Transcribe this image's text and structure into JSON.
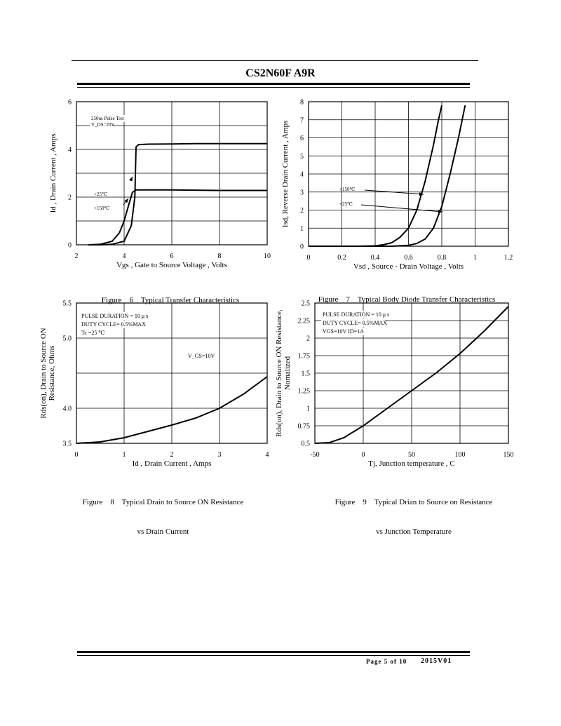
{
  "header": {
    "part_number": "CS2N60F A9R"
  },
  "footer": {
    "page": "Page 5 of 10",
    "revision": "2015V01"
  },
  "figures": [
    {
      "caption_line1": "Figure    6    Typical Transfer Characteristics",
      "caption_line2": ""
    },
    {
      "caption_line1": "Figure    7    Typical Body Diode Transfer Characteristics",
      "caption_line2": ""
    },
    {
      "caption_line1": "Figure    8    Typical Drain to Source ON Resistance",
      "caption_line2": "vs Drain Current"
    },
    {
      "caption_line1": "Figure    9    Typical Drian to Source on Resistance",
      "caption_line2": "vs Junction Temperature"
    }
  ],
  "chart_data": [
    {
      "type": "line",
      "xlabel": "Vgs , Gate to Source Voltage , Volts",
      "ylabel": "Id , Drain Current , Amps",
      "xlim": [
        2,
        10
      ],
      "ylim": [
        0,
        6
      ],
      "xticks": [
        2,
        4,
        6,
        8,
        10
      ],
      "yticks": [
        0,
        2,
        4,
        6
      ],
      "grid": true,
      "annotations": [
        "250us Pulse Test",
        "V_DS=20V"
      ],
      "series": [
        {
          "name": "+25℃",
          "x": [
            2.5,
            3.0,
            3.5,
            4.0,
            4.3,
            4.45,
            4.5,
            4.6,
            5.0,
            6.0,
            7.0,
            8.0,
            9.0,
            10.0
          ],
          "y": [
            0.0,
            0.0,
            0.02,
            0.15,
            0.8,
            2.0,
            4.1,
            4.2,
            4.22,
            4.23,
            4.24,
            4.24,
            4.24,
            4.24
          ]
        },
        {
          "name": "+150℃",
          "x": [
            2.5,
            3.0,
            3.5,
            3.8,
            4.0,
            4.2,
            4.35,
            4.5,
            5.0,
            6.0,
            7.0,
            8.0,
            9.0,
            10.0
          ],
          "y": [
            0.0,
            0.02,
            0.15,
            0.5,
            1.0,
            1.7,
            2.2,
            2.3,
            2.3,
            2.3,
            2.29,
            2.28,
            2.28,
            2.28
          ]
        }
      ]
    },
    {
      "type": "line",
      "xlabel": "Vsd , Source - Drain Voltage , Volts",
      "ylabel": "Isd, Reverse Drain Current , Amps",
      "xlim": [
        0,
        1.2
      ],
      "ylim": [
        0,
        8
      ],
      "xticks": [
        0,
        0.2,
        0.4,
        0.6,
        0.8,
        1,
        1.2
      ],
      "yticks": [
        0,
        1,
        2,
        3,
        4,
        5,
        6,
        7,
        8
      ],
      "grid": true,
      "series": [
        {
          "name": "+150℃",
          "x": [
            0,
            0.3,
            0.4,
            0.45,
            0.5,
            0.55,
            0.6,
            0.65,
            0.7,
            0.75,
            0.78,
            0.8
          ],
          "y": [
            0,
            0,
            0.02,
            0.08,
            0.2,
            0.5,
            1.0,
            2.0,
            3.6,
            5.6,
            7.0,
            7.8
          ]
        },
        {
          "name": "+25℃",
          "x": [
            0,
            0.5,
            0.6,
            0.65,
            0.7,
            0.75,
            0.8,
            0.85,
            0.9,
            0.94
          ],
          "y": [
            0,
            0,
            0.05,
            0.15,
            0.4,
            1.0,
            2.2,
            4.0,
            6.0,
            7.8
          ]
        }
      ]
    },
    {
      "type": "line",
      "xlabel": "Id , Drain Current , Amps",
      "ylabel": "Rds(on), Drain to Source ON Resistance, Ohms",
      "xlim": [
        0,
        4
      ],
      "ylim": [
        3.5,
        5.5
      ],
      "xticks": [
        0,
        1,
        2,
        3,
        4
      ],
      "yticks": [
        3.5,
        4.0,
        4.5,
        5.0,
        5.5
      ],
      "ytick_labels": [
        "3.5",
        "4.0",
        "",
        "5.0",
        "5.5"
      ],
      "grid": true,
      "annotations": [
        "PULSE   DURATION = 10 μ s",
        "DUTY   CYCLE= 0.5%MAX",
        "Tc =25  ℃",
        "V_GS=10V"
      ],
      "series": [
        {
          "name": "V_GS=10V",
          "x": [
            0,
            0.5,
            1.0,
            1.5,
            2.0,
            2.5,
            3.0,
            3.5,
            4.0
          ],
          "y": [
            3.5,
            3.52,
            3.58,
            3.67,
            3.76,
            3.86,
            4.0,
            4.2,
            4.45
          ]
        }
      ]
    },
    {
      "type": "line",
      "xlabel": "Tj, Junction temperature , C",
      "ylabel": "Rds(on), Drain to Source ON Resistance, Nomalized",
      "xlim": [
        -50,
        150
      ],
      "ylim": [
        0.5,
        2.5
      ],
      "xticks": [
        -50,
        0,
        50,
        100,
        150
      ],
      "yticks": [
        0.5,
        0.75,
        1,
        1.25,
        1.5,
        1.75,
        2,
        2.25,
        2.5
      ],
      "grid": true,
      "annotations": [
        "PULSE   DURATION = 10 μ s",
        "DUTY   CYCLE= 0.5%MAX",
        "VGS=10V   ID=1A"
      ],
      "series": [
        {
          "name": "",
          "x": [
            -50,
            -35,
            -20,
            0,
            25,
            50,
            75,
            100,
            125,
            150
          ],
          "y": [
            0.5,
            0.51,
            0.58,
            0.75,
            1.0,
            1.25,
            1.5,
            1.78,
            2.1,
            2.45
          ]
        }
      ]
    }
  ]
}
